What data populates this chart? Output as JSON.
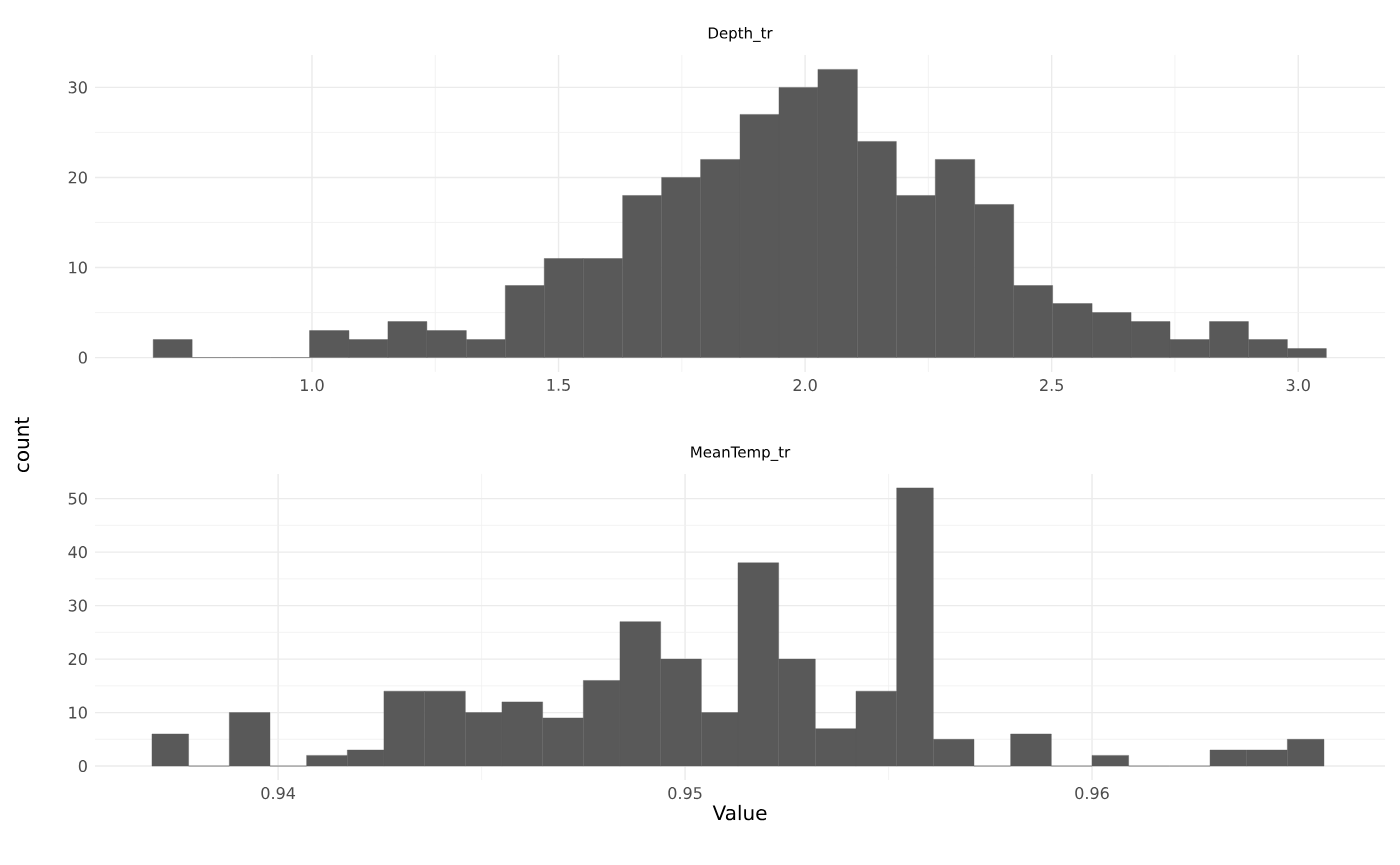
{
  "chart_data": [
    {
      "type": "histogram",
      "title": "Depth_tr",
      "ylabel": "count",
      "color": "#595959",
      "grid": true,
      "bins": [
        0.678,
        0.757,
        0.837,
        0.916,
        0.995,
        1.075,
        1.154,
        1.233,
        1.313,
        1.392,
        1.471,
        1.55,
        1.63,
        1.709,
        1.788,
        1.868,
        1.947,
        2.026,
        2.106,
        2.185,
        2.264,
        2.344,
        2.423,
        2.502,
        2.582,
        2.661,
        2.74,
        2.82,
        2.899,
        2.978,
        3.057
      ],
      "values": [
        2,
        0,
        0,
        0,
        3,
        2,
        4,
        3,
        2,
        8,
        11,
        11,
        18,
        20,
        22,
        27,
        30,
        32,
        24,
        18,
        22,
        17,
        8,
        6,
        5,
        4,
        2,
        4,
        2,
        1
      ],
      "xlim": [
        0.56,
        3.176
      ],
      "ylim": [
        -1.6,
        33.6
      ],
      "xticks": [
        {
          "value": 1,
          "label": "1.0"
        },
        1.5,
        {
          "value": 2,
          "label": "2.0"
        },
        2.5,
        {
          "value": 3,
          "label": "3.0"
        }
      ],
      "yticks": [
        0,
        10,
        20,
        30
      ]
    },
    {
      "type": "histogram",
      "title": "MeanTemp_tr",
      "xlabel": "Value",
      "color": "#595959",
      "grid": true,
      "bins": [
        0.9369,
        0.9378,
        0.9388,
        0.9398,
        0.9407,
        0.9417,
        0.9426,
        0.9436,
        0.9446,
        0.9455,
        0.9465,
        0.9475,
        0.9484,
        0.9494,
        0.9504,
        0.9513,
        0.9523,
        0.9532,
        0.9542,
        0.9552,
        0.9561,
        0.9571,
        0.958,
        0.959,
        0.96,
        0.9609,
        0.9619,
        0.9629,
        0.9638,
        0.9648,
        0.9657
      ],
      "values": [
        6,
        0,
        10,
        0,
        2,
        3,
        14,
        14,
        10,
        12,
        9,
        16,
        27,
        20,
        10,
        38,
        20,
        7,
        14,
        52,
        5,
        0,
        6,
        0,
        2,
        0,
        0,
        3,
        3,
        5
      ],
      "xlim": [
        0.9355,
        0.9672
      ],
      "ylim": [
        -2.6,
        54.6
      ],
      "xticks": [
        0.94,
        0.95,
        0.96
      ],
      "yticks": [
        0,
        10,
        20,
        30,
        40,
        50
      ]
    }
  ]
}
